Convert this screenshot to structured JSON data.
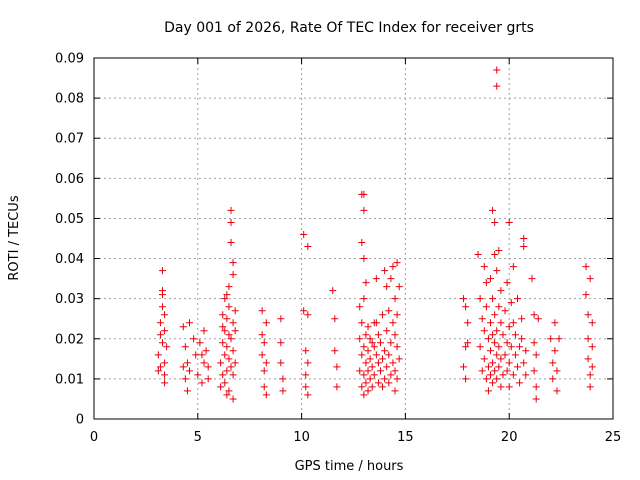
{
  "chart_data": {
    "type": "scatter",
    "title": "Day 001 of 2026, Rate Of TEC Index for receiver grts",
    "xlabel": "GPS time / hours",
    "ylabel": "ROTI / TECUs",
    "xlim": [
      0,
      25
    ],
    "ylim": [
      0,
      0.09
    ],
    "x_ticks": [
      0,
      5,
      10,
      15,
      20,
      25
    ],
    "x_tick_labels": [
      "0",
      "5",
      "10",
      "15",
      "20",
      "25"
    ],
    "y_ticks": [
      0,
      0.01,
      0.02,
      0.03,
      0.04,
      0.05,
      0.06,
      0.07,
      0.08,
      0.09
    ],
    "y_tick_labels": [
      "0",
      "0.01",
      "0.02",
      "0.03",
      "0.04",
      "0.05",
      "0.06",
      "0.07",
      "0.08",
      "0.09"
    ],
    "grid": true,
    "marker": "plus",
    "color": "#e8000b",
    "series": [
      {
        "points": [
          [
            3.1,
            0.012
          ],
          [
            3.1,
            0.016
          ],
          [
            3.2,
            0.024
          ],
          [
            3.2,
            0.021
          ],
          [
            3.3,
            0.019
          ],
          [
            3.3,
            0.028
          ],
          [
            3.3,
            0.032
          ],
          [
            3.3,
            0.037
          ],
          [
            3.4,
            0.014
          ],
          [
            3.4,
            0.009
          ],
          [
            3.4,
            0.011
          ],
          [
            3.4,
            0.026
          ],
          [
            3.5,
            0.018
          ],
          [
            3.2,
            0.013
          ],
          [
            3.3,
            0.031
          ],
          [
            3.4,
            0.022
          ],
          [
            4.3,
            0.023
          ],
          [
            4.3,
            0.013
          ],
          [
            4.4,
            0.01
          ],
          [
            4.4,
            0.018
          ],
          [
            4.5,
            0.007
          ],
          [
            4.5,
            0.014
          ],
          [
            4.6,
            0.024
          ],
          [
            4.6,
            0.012
          ],
          [
            4.8,
            0.02
          ],
          [
            4.9,
            0.016
          ],
          [
            5.0,
            0.011
          ],
          [
            5.1,
            0.019
          ],
          [
            5.2,
            0.009
          ],
          [
            5.3,
            0.022
          ],
          [
            5.3,
            0.014
          ],
          [
            5.4,
            0.017
          ],
          [
            5.5,
            0.01
          ],
          [
            5.5,
            0.013
          ],
          [
            5.2,
            0.016
          ],
          [
            6.1,
            0.008
          ],
          [
            6.1,
            0.014
          ],
          [
            6.2,
            0.026
          ],
          [
            6.2,
            0.019
          ],
          [
            6.2,
            0.011
          ],
          [
            6.3,
            0.03
          ],
          [
            6.3,
            0.022
          ],
          [
            6.3,
            0.016
          ],
          [
            6.3,
            0.009
          ],
          [
            6.4,
            0.025
          ],
          [
            6.4,
            0.018
          ],
          [
            6.4,
            0.012
          ],
          [
            6.4,
            0.031
          ],
          [
            6.5,
            0.021
          ],
          [
            6.5,
            0.015
          ],
          [
            6.5,
            0.007
          ],
          [
            6.5,
            0.028
          ],
          [
            6.6,
            0.02
          ],
          [
            6.6,
            0.013
          ],
          [
            6.6,
            0.044
          ],
          [
            6.6,
            0.052
          ],
          [
            6.6,
            0.049
          ],
          [
            6.7,
            0.024
          ],
          [
            6.7,
            0.017
          ],
          [
            6.7,
            0.011
          ],
          [
            6.7,
            0.005
          ],
          [
            6.7,
            0.036
          ],
          [
            6.7,
            0.039
          ],
          [
            6.8,
            0.022
          ],
          [
            6.8,
            0.014
          ],
          [
            6.8,
            0.027
          ],
          [
            6.5,
            0.033
          ],
          [
            6.4,
            0.006
          ],
          [
            6.2,
            0.023
          ],
          [
            8.1,
            0.027
          ],
          [
            8.1,
            0.021
          ],
          [
            8.1,
            0.016
          ],
          [
            8.2,
            0.012
          ],
          [
            8.2,
            0.008
          ],
          [
            8.2,
            0.019
          ],
          [
            8.3,
            0.024
          ],
          [
            8.3,
            0.006
          ],
          [
            8.3,
            0.014
          ],
          [
            9.0,
            0.025
          ],
          [
            9.0,
            0.019
          ],
          [
            9.0,
            0.014
          ],
          [
            9.1,
            0.01
          ],
          [
            9.1,
            0.007
          ],
          [
            10.1,
            0.046
          ],
          [
            10.1,
            0.027
          ],
          [
            10.2,
            0.017
          ],
          [
            10.2,
            0.011
          ],
          [
            10.2,
            0.008
          ],
          [
            10.3,
            0.043
          ],
          [
            10.3,
            0.026
          ],
          [
            10.3,
            0.014
          ],
          [
            10.3,
            0.006
          ],
          [
            11.5,
            0.032
          ],
          [
            11.6,
            0.025
          ],
          [
            11.6,
            0.017
          ],
          [
            11.7,
            0.013
          ],
          [
            11.7,
            0.008
          ],
          [
            12.8,
            0.012
          ],
          [
            12.8,
            0.02
          ],
          [
            12.8,
            0.028
          ],
          [
            12.9,
            0.008
          ],
          [
            12.9,
            0.016
          ],
          [
            12.9,
            0.024
          ],
          [
            12.9,
            0.044
          ],
          [
            12.9,
            0.056
          ],
          [
            13.0,
            0.006
          ],
          [
            13.0,
            0.011
          ],
          [
            13.0,
            0.018
          ],
          [
            13.0,
            0.03
          ],
          [
            13.0,
            0.04
          ],
          [
            13.0,
            0.052
          ],
          [
            13.0,
            0.056
          ],
          [
            13.1,
            0.009
          ],
          [
            13.1,
            0.014
          ],
          [
            13.1,
            0.021
          ],
          [
            13.1,
            0.034
          ],
          [
            13.2,
            0.007
          ],
          [
            13.2,
            0.012
          ],
          [
            13.2,
            0.017
          ],
          [
            13.2,
            0.023
          ],
          [
            13.3,
            0.01
          ],
          [
            13.3,
            0.015
          ],
          [
            13.3,
            0.02
          ],
          [
            13.4,
            0.008
          ],
          [
            13.4,
            0.013
          ],
          [
            13.5,
            0.011
          ],
          [
            13.5,
            0.018
          ],
          [
            13.5,
            0.024
          ],
          [
            13.6,
            0.016
          ],
          [
            13.6,
            0.035
          ],
          [
            13.7,
            0.009
          ],
          [
            13.7,
            0.014
          ],
          [
            13.7,
            0.021
          ],
          [
            13.8,
            0.012
          ],
          [
            13.8,
            0.019
          ],
          [
            13.9,
            0.008
          ],
          [
            13.9,
            0.015
          ],
          [
            13.9,
            0.026
          ],
          [
            14.0,
            0.01
          ],
          [
            14.0,
            0.017
          ],
          [
            14.0,
            0.037
          ],
          [
            14.1,
            0.013
          ],
          [
            14.1,
            0.022
          ],
          [
            14.1,
            0.033
          ],
          [
            14.2,
            0.009
          ],
          [
            14.2,
            0.016
          ],
          [
            14.2,
            0.027
          ],
          [
            14.3,
            0.011
          ],
          [
            14.3,
            0.019
          ],
          [
            14.3,
            0.035
          ],
          [
            14.4,
            0.014
          ],
          [
            14.4,
            0.024
          ],
          [
            14.4,
            0.038
          ],
          [
            14.5,
            0.007
          ],
          [
            14.5,
            0.012
          ],
          [
            14.5,
            0.021
          ],
          [
            14.5,
            0.03
          ],
          [
            14.6,
            0.01
          ],
          [
            14.6,
            0.018
          ],
          [
            14.6,
            0.039
          ],
          [
            14.7,
            0.015
          ],
          [
            14.7,
            0.033
          ],
          [
            14.6,
            0.026
          ],
          [
            13.6,
            0.024
          ],
          [
            13.4,
            0.019
          ],
          [
            17.8,
            0.03
          ],
          [
            17.8,
            0.013
          ],
          [
            17.9,
            0.028
          ],
          [
            17.9,
            0.018
          ],
          [
            17.9,
            0.01
          ],
          [
            18.0,
            0.024
          ],
          [
            18.0,
            0.019
          ],
          [
            18.5,
            0.041
          ],
          [
            18.6,
            0.03
          ],
          [
            18.6,
            0.018
          ],
          [
            18.7,
            0.025
          ],
          [
            18.7,
            0.012
          ],
          [
            18.8,
            0.038
          ],
          [
            18.8,
            0.022
          ],
          [
            18.8,
            0.015
          ],
          [
            18.9,
            0.01
          ],
          [
            18.9,
            0.028
          ],
          [
            18.9,
            0.034
          ],
          [
            19.0,
            0.02
          ],
          [
            19.0,
            0.013
          ],
          [
            19.0,
            0.007
          ],
          [
            19.1,
            0.024
          ],
          [
            19.1,
            0.017
          ],
          [
            19.1,
            0.011
          ],
          [
            19.1,
            0.035
          ],
          [
            19.2,
            0.03
          ],
          [
            19.2,
            0.021
          ],
          [
            19.2,
            0.014
          ],
          [
            19.2,
            0.009
          ],
          [
            19.2,
            0.052
          ],
          [
            19.3,
            0.026
          ],
          [
            19.3,
            0.019
          ],
          [
            19.3,
            0.012
          ],
          [
            19.3,
            0.041
          ],
          [
            19.3,
            0.049
          ],
          [
            19.4,
            0.022
          ],
          [
            19.4,
            0.016
          ],
          [
            19.4,
            0.01
          ],
          [
            19.4,
            0.037
          ],
          [
            19.4,
            0.083
          ],
          [
            19.4,
            0.087
          ],
          [
            19.5,
            0.028
          ],
          [
            19.5,
            0.018
          ],
          [
            19.5,
            0.013
          ],
          [
            19.5,
            0.042
          ],
          [
            19.6,
            0.024
          ],
          [
            19.6,
            0.015
          ],
          [
            19.6,
            0.008
          ],
          [
            19.6,
            0.032
          ],
          [
            19.7,
            0.021
          ],
          [
            19.7,
            0.011
          ],
          [
            19.8,
            0.027
          ],
          [
            19.8,
            0.016
          ],
          [
            19.9,
            0.019
          ],
          [
            19.9,
            0.012
          ],
          [
            19.9,
            0.034
          ],
          [
            20.0,
            0.023
          ],
          [
            20.0,
            0.014
          ],
          [
            20.0,
            0.008
          ],
          [
            20.0,
            0.049
          ],
          [
            20.1,
            0.018
          ],
          [
            20.1,
            0.029
          ],
          [
            20.2,
            0.011
          ],
          [
            20.2,
            0.024
          ],
          [
            20.2,
            0.038
          ],
          [
            20.3,
            0.016
          ],
          [
            20.3,
            0.021
          ],
          [
            20.4,
            0.013
          ],
          [
            20.4,
            0.03
          ],
          [
            20.5,
            0.018
          ],
          [
            20.5,
            0.009
          ],
          [
            20.6,
            0.02
          ],
          [
            20.6,
            0.025
          ],
          [
            20.7,
            0.014
          ],
          [
            20.7,
            0.045
          ],
          [
            20.7,
            0.043
          ],
          [
            20.8,
            0.017
          ],
          [
            20.8,
            0.011
          ],
          [
            21.1,
            0.035
          ],
          [
            21.2,
            0.026
          ],
          [
            21.2,
            0.019
          ],
          [
            21.2,
            0.012
          ],
          [
            21.3,
            0.008
          ],
          [
            21.3,
            0.016
          ],
          [
            21.3,
            0.005
          ],
          [
            21.4,
            0.025
          ],
          [
            22.0,
            0.02
          ],
          [
            22.1,
            0.014
          ],
          [
            22.1,
            0.01
          ],
          [
            22.2,
            0.024
          ],
          [
            22.2,
            0.017
          ],
          [
            22.3,
            0.012
          ],
          [
            22.3,
            0.007
          ],
          [
            22.4,
            0.02
          ],
          [
            23.7,
            0.038
          ],
          [
            23.7,
            0.031
          ],
          [
            23.8,
            0.026
          ],
          [
            23.8,
            0.02
          ],
          [
            23.8,
            0.015
          ],
          [
            23.9,
            0.011
          ],
          [
            23.9,
            0.008
          ],
          [
            23.9,
            0.035
          ],
          [
            24.0,
            0.024
          ],
          [
            24.0,
            0.013
          ],
          [
            24.0,
            0.018
          ]
        ]
      }
    ]
  }
}
